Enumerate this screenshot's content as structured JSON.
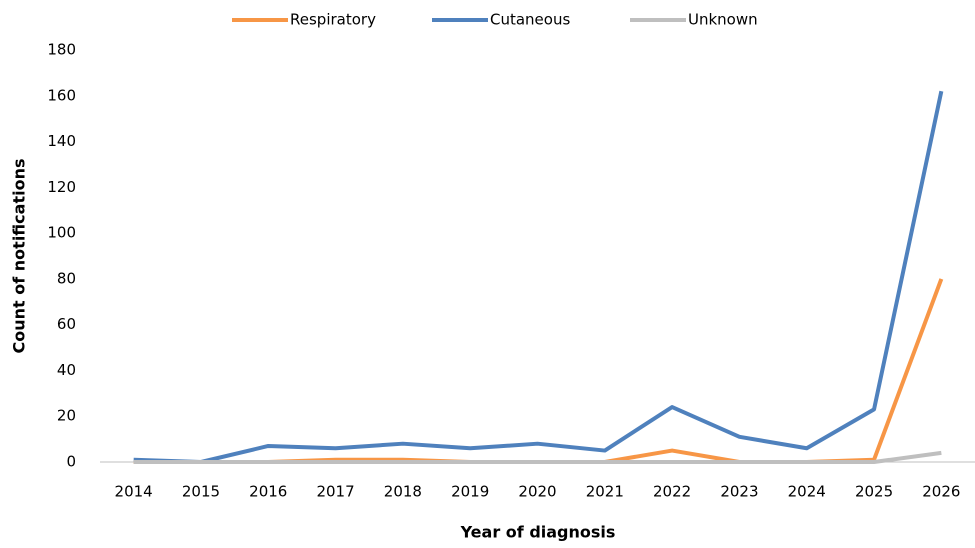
{
  "chart_data": {
    "type": "line",
    "x_label": "Year of diagnosis",
    "y_label": "Count of notifications",
    "categories": [
      "2014",
      "2015",
      "2016",
      "2017",
      "2018",
      "2019",
      "2020",
      "2021",
      "2022",
      "2023",
      "2024",
      "2025",
      "2026"
    ],
    "series": [
      {
        "name": "Respiratory",
        "color": "#f79646",
        "values": [
          0,
          0,
          0,
          1,
          1,
          0,
          0,
          0,
          5,
          0,
          0,
          1,
          80
        ]
      },
      {
        "name": "Cutaneous",
        "color": "#4f81bd",
        "values": [
          1,
          0,
          7,
          6,
          8,
          6,
          8,
          5,
          24,
          11,
          6,
          23,
          162
        ]
      },
      {
        "name": "Unknown",
        "color": "#bfbfbf",
        "values": [
          0,
          0,
          0,
          0,
          0,
          0,
          0,
          0,
          0,
          0,
          0,
          0,
          4
        ]
      }
    ],
    "ylim": [
      0,
      180
    ],
    "yticks": [
      0,
      20,
      40,
      60,
      80,
      100,
      120,
      140,
      160,
      180
    ],
    "grid": false,
    "legend": "top"
  }
}
